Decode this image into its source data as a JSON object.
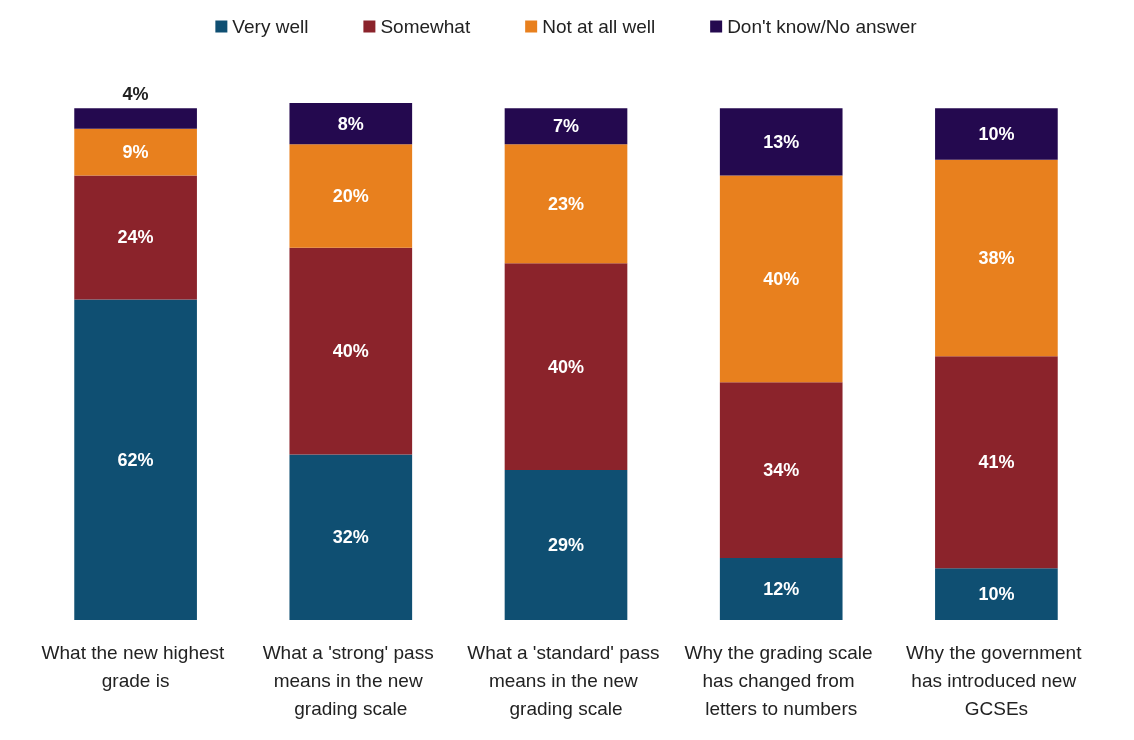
{
  "chart_data": {
    "type": "bar",
    "stacked": true,
    "legend": "top",
    "tick_labels": "x",
    "categories": [
      "What the new highest grade is",
      "What a 'strong' pass means in the new grading scale",
      "What a 'standard' pass means in the new grading scale",
      "Why the grading scale has changed from letters to numbers",
      "Why the government has introduced new GCSEs"
    ],
    "series": [
      {
        "name": "Very well",
        "color": "#0f4f72",
        "values": [
          62,
          32,
          29,
          12,
          10
        ],
        "value_labels": [
          "62%",
          "32%",
          "29%",
          "12%",
          "10%"
        ]
      },
      {
        "name": "Somewhat",
        "color": "#8b232b",
        "values": [
          24,
          40,
          40,
          34,
          41
        ],
        "value_labels": [
          "24%",
          "40%",
          "40%",
          "34%",
          "41%"
        ]
      },
      {
        "name": "Not at all well",
        "color": "#e8801e",
        "values": [
          9,
          20,
          23,
          40,
          38
        ],
        "value_labels": [
          "9%",
          "20%",
          "23%",
          "40%",
          "38%"
        ]
      },
      {
        "name": "Don't know/No answer",
        "color": "#24094f",
        "values": [
          4,
          8,
          7,
          13,
          10
        ],
        "value_labels": [
          "4%",
          "8%",
          "7%",
          "13%",
          "10%"
        ]
      }
    ]
  }
}
